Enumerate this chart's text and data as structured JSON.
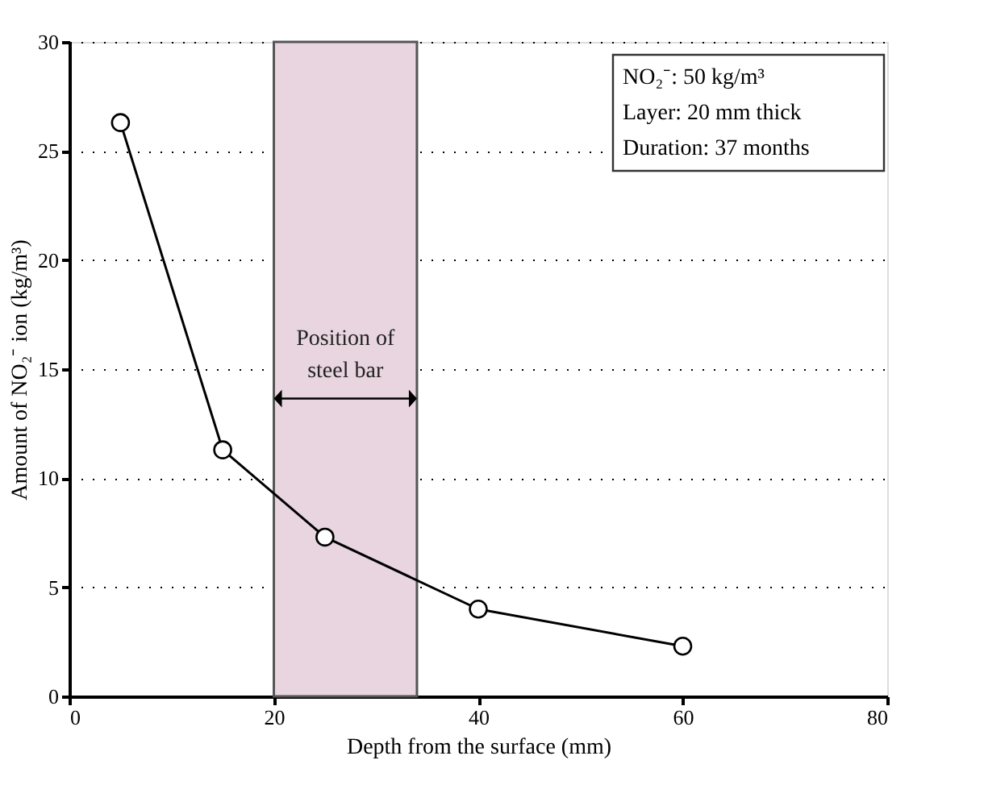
{
  "chart_data": {
    "type": "line",
    "xlabel": "Depth from the surface (mm)",
    "ylabel": "Amount of NO₂⁻ ion (kg/m³)",
    "x": [
      5,
      15,
      25,
      40,
      60
    ],
    "series": [
      {
        "color": "#000000",
        "values": [
          26.3,
          11.3,
          7.3,
          4.0,
          2.3
        ]
      }
    ],
    "xlim": [
      0,
      80
    ],
    "xticks": [
      0,
      20,
      40,
      60,
      80
    ],
    "ylim": [
      0,
      30
    ],
    "yticks": [
      0,
      5,
      10,
      15,
      20,
      25,
      30
    ],
    "grid": "y",
    "marker": "circle",
    "line_style": "solid",
    "bands": [
      {
        "axis": "x",
        "from": 20,
        "to": 34,
        "label": "Position of steel bar",
        "color": "#e8d5df"
      }
    ],
    "annotations": [
      "NO₂⁻: 50 kg/m³",
      "Layer: 20 mm thick",
      "Duration: 37 months"
    ]
  }
}
